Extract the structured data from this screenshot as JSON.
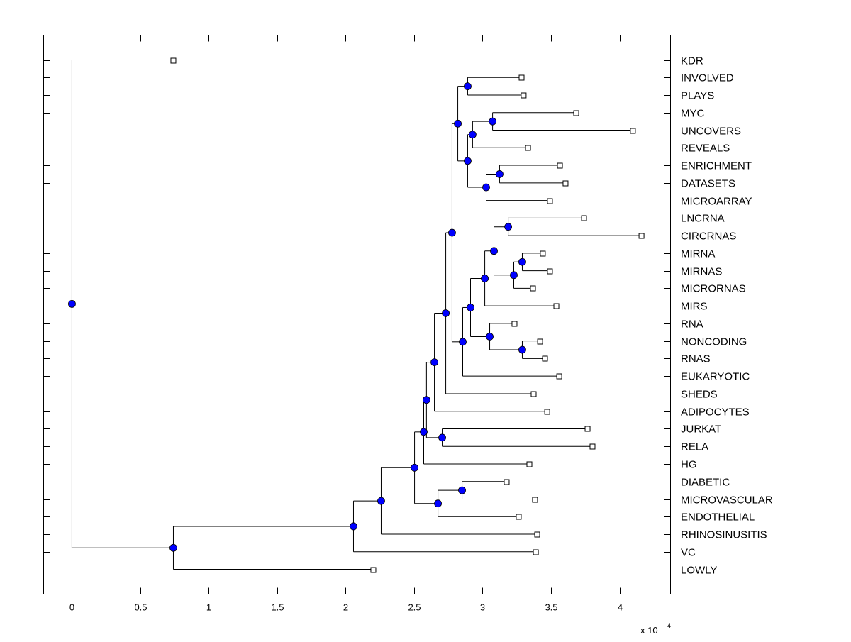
{
  "chart_data": {
    "type": "dendrogram",
    "title": "",
    "x_multiplier_label": "x 10",
    "x_multiplier_exponent": "4",
    "xlim": [
      -0.207,
      4.373
    ],
    "xticks": [
      0,
      0.5,
      1,
      1.5,
      2,
      2.5,
      3,
      3.5,
      4
    ],
    "xtick_labels": [
      "0",
      "0.5",
      "1",
      "1.5",
      "2",
      "2.5",
      "3",
      "3.5",
      "4"
    ],
    "node_color": "#0000ff",
    "tree": {
      "h": 0,
      "c": [
        {
          "leaf": "KDR",
          "h": 0.741
        },
        {
          "h": 0.741,
          "c": [
            {
              "h": 2.057,
              "c": [
                {
                  "h": 2.259,
                  "c": [
                    {
                      "h": 2.503,
                      "c": [
                        {
                          "h": 2.57,
                          "c": [
                            {
                              "h": 2.59,
                              "c": [
                                {
                                  "h": 2.648,
                                  "c": [
                                    {
                                      "h": 2.731,
                                      "c": [
                                        {
                                          "h": 2.777,
                                          "c": [
                                            {
                                              "h": 2.819,
                                              "c": [
                                                {
                                                  "h": 2.891,
                                                  "c": [
                                                    {
                                                      "leaf": "INVOLVED",
                                                      "h": 3.285
                                                    },
                                                    {
                                                      "leaf": "PLAYS",
                                                      "h": 3.3
                                                    }
                                                  ]
                                                },
                                                {
                                                  "h": 2.891,
                                                  "c": [
                                                    {
                                                      "h": 2.927,
                                                      "c": [
                                                        {
                                                          "h": 3.073,
                                                          "c": [
                                                            {
                                                              "leaf": "MYC",
                                                              "h": 3.684
                                                            },
                                                            {
                                                              "leaf": "UNCOVERS",
                                                              "h": 4.098
                                                            }
                                                          ]
                                                        },
                                                        {
                                                          "leaf": "REVEALS",
                                                          "h": 3.332
                                                        }
                                                      ]
                                                    },
                                                    {
                                                      "h": 3.026,
                                                      "c": [
                                                        {
                                                          "h": 3.124,
                                                          "c": [
                                                            {
                                                              "leaf": "ENRICHMENT",
                                                              "h": 3.565
                                                            },
                                                            {
                                                              "leaf": "DATASETS",
                                                              "h": 3.606
                                                            }
                                                          ]
                                                        },
                                                        {
                                                          "leaf": "MICROARRAY",
                                                          "h": 3.492
                                                        }
                                                      ]
                                                    }
                                                  ]
                                                }
                                              ]
                                            },
                                            {
                                              "h": 2.855,
                                              "c": [
                                                {
                                                  "h": 2.912,
                                                  "c": [
                                                    {
                                                      "h": 3.016,
                                                      "c": [
                                                        {
                                                          "h": 3.083,
                                                          "c": [
                                                            {
                                                              "h": 3.187,
                                                              "c": [
                                                                {
                                                                  "leaf": "LNCRNA",
                                                                  "h": 3.741
                                                                },
                                                                {
                                                                  "leaf": "CIRCRNAS",
                                                                  "h": 4.161
                                                                }
                                                              ]
                                                            },
                                                            {
                                                              "h": 3.228,
                                                              "c": [
                                                                {
                                                                  "h": 3.29,
                                                                  "c": [
                                                                    {
                                                                      "leaf": "MIRNA",
                                                                      "h": 3.44
                                                                    },
                                                                    {
                                                                      "leaf": "MIRNAS",
                                                                      "h": 3.492
                                                                    }
                                                                  ]
                                                                },
                                                                {
                                                                  "leaf": "MICRORNAS",
                                                                  "h": 3.368
                                                                }
                                                              ]
                                                            }
                                                          ]
                                                        },
                                                        {
                                                          "leaf": "MIRS",
                                                          "h": 3.539
                                                        }
                                                      ]
                                                    },
                                                    {
                                                      "h": 3.052,
                                                      "c": [
                                                        {
                                                          "leaf": "RNA",
                                                          "h": 3.233
                                                        },
                                                        {
                                                          "h": 3.29,
                                                          "c": [
                                                            {
                                                              "leaf": "NONCODING",
                                                              "h": 3.42
                                                            },
                                                            {
                                                              "leaf": "RNAS",
                                                              "h": 3.456
                                                            }
                                                          ]
                                                        }
                                                      ]
                                                    }
                                                  ]
                                                },
                                                {
                                                  "leaf": "EUKARYOTIC",
                                                  "h": 3.56
                                                }
                                              ]
                                            }
                                          ]
                                        },
                                        {
                                          "leaf": "SHEDS",
                                          "h": 3.373
                                        }
                                      ]
                                    },
                                    {
                                      "leaf": "ADIPOCYTES",
                                      "h": 3.472
                                    }
                                  ]
                                },
                                {
                                  "h": 2.705,
                                  "c": [
                                    {
                                      "leaf": "JURKAT",
                                      "h": 3.767
                                    },
                                    {
                                      "leaf": "RELA",
                                      "h": 3.803
                                    }
                                  ]
                                }
                              ]
                            },
                            {
                              "leaf": "HG",
                              "h": 3.342
                            }
                          ]
                        },
                        {
                          "h": 2.674,
                          "c": [
                            {
                              "h": 2.85,
                              "c": [
                                {
                                  "leaf": "DIABETIC",
                                  "h": 3.176
                                },
                                {
                                  "leaf": "MICROVASCULAR",
                                  "h": 3.383
                                }
                              ]
                            },
                            {
                              "leaf": "ENDOTHELIAL",
                              "h": 3.264
                            }
                          ]
                        }
                      ]
                    },
                    {
                      "leaf": "RHINOSINUSITIS",
                      "h": 3.399
                    }
                  ]
                },
                {
                  "leaf": "VC",
                  "h": 3.389
                }
              ]
            },
            {
              "leaf": "LOWLY",
              "h": 2.202
            }
          ]
        }
      ]
    }
  }
}
